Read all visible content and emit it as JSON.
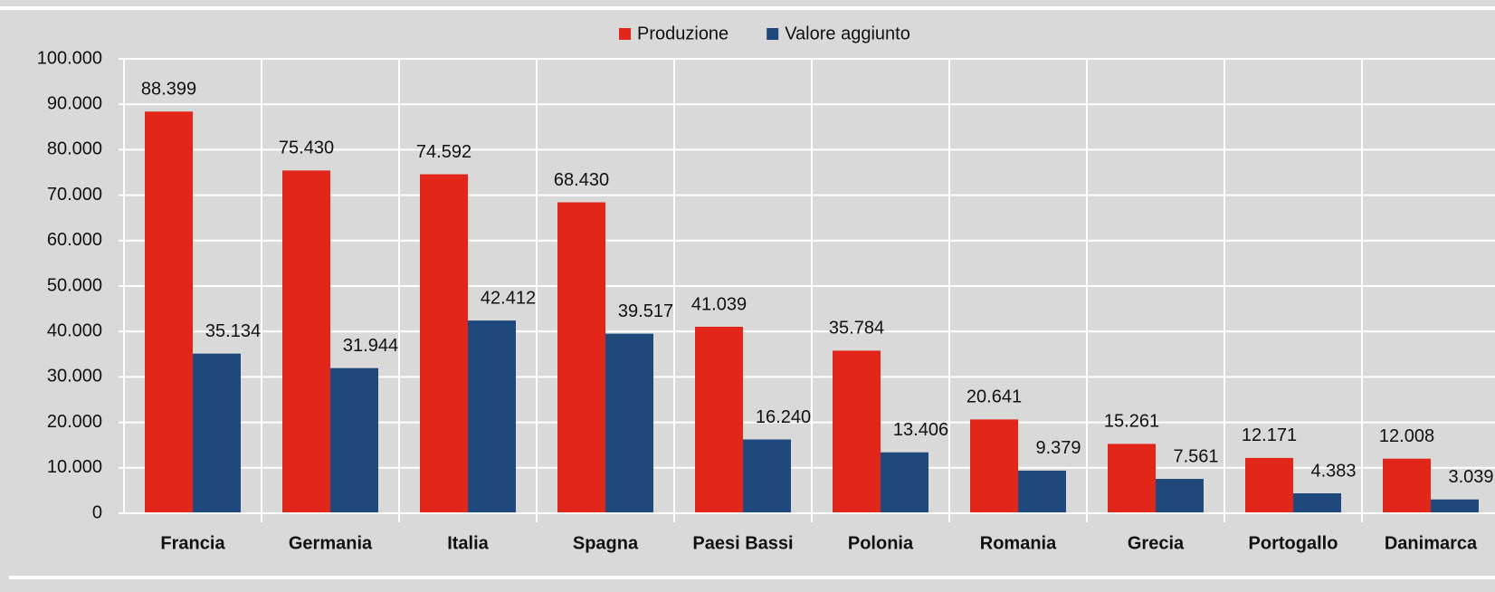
{
  "chart_data": {
    "type": "bar",
    "categories": [
      "Francia",
      "Germania",
      "Italia",
      "Spagna",
      "Paesi Bassi",
      "Polonia",
      "Romania",
      "Grecia",
      "Portogallo",
      "Danimarca"
    ],
    "series": [
      {
        "name": "Produzione",
        "color": "#e3261a",
        "values": [
          88399,
          75430,
          74592,
          68430,
          41039,
          35784,
          20641,
          15261,
          12171,
          12008
        ],
        "value_labels": [
          "88.399",
          "75.430",
          "74.592",
          "68.430",
          "41.039",
          "35.784",
          "20.641",
          "15.261",
          "12.171",
          "12.008"
        ]
      },
      {
        "name": "Valore aggiunto",
        "color": "#1f497d",
        "values": [
          35134,
          31944,
          42412,
          39517,
          16240,
          13406,
          9379,
          7561,
          4383,
          3039
        ],
        "value_labels": [
          "35.134",
          "31.944",
          "42.412",
          "39.517",
          "16.240",
          "13.406",
          "9.379",
          "7.561",
          "4.383",
          "3.039"
        ]
      }
    ],
    "ylim": [
      0,
      100000
    ],
    "yticks": [
      0,
      {
        "value": 10000,
        "label": "10.000"
      },
      {
        "value": 20000,
        "label": "20.000"
      },
      {
        "value": 30000,
        "label": "30.000"
      },
      {
        "value": 40000,
        "label": "40.000"
      },
      {
        "value": 50000,
        "label": "50.000"
      },
      {
        "value": 60000,
        "label": "60.000"
      },
      {
        "value": 70000,
        "label": "70.000"
      },
      {
        "value": 80000,
        "label": "80.000"
      },
      {
        "value": 90000,
        "label": "90.000"
      },
      {
        "value": 100000,
        "label": "100.000"
      }
    ],
    "grid": true,
    "legend": "top"
  }
}
